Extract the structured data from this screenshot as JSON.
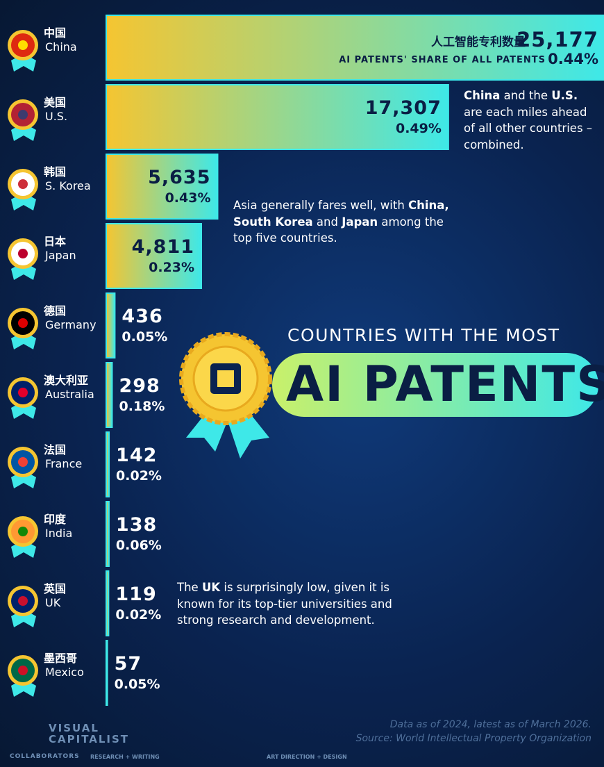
{
  "chart_data": {
    "type": "bar",
    "orientation": "horizontal",
    "title": "AI PATENTS",
    "title_prefix": "COUNTRIES WITH THE MOST",
    "categories": [
      "China",
      "U.S.",
      "S. Korea",
      "Japan",
      "Germany",
      "Australia",
      "France",
      "India",
      "UK",
      "Mexico"
    ],
    "categories_zh": [
      "中国",
      "美国",
      "韩国",
      "日本",
      "德国",
      "澳大利亚",
      "法国",
      "印度",
      "英国",
      "墨西哥"
    ],
    "values": [
      25177,
      17307,
      5635,
      4811,
      436,
      298,
      142,
      138,
      119,
      57
    ],
    "value_labels": [
      "25,177",
      "17,307",
      "5,635",
      "4,811",
      "436",
      "298",
      "142",
      "138",
      "119",
      "57"
    ],
    "value_header": "人工智能专利数量",
    "share_header": "AI PATENTS' SHARE OF ALL PATENTS",
    "shares": [
      0.44,
      0.49,
      0.43,
      0.23,
      0.05,
      0.18,
      0.02,
      0.06,
      0.02,
      0.05
    ],
    "share_labels": [
      "0.44%",
      "0.49%",
      "0.43%",
      "0.23%",
      "0.05%",
      "0.18%",
      "0.02%",
      "0.06%",
      "0.02%",
      "0.05%"
    ],
    "colors": [
      "#f5c531",
      "#3ee8e8"
    ],
    "annotations": [
      {
        "parts": [
          {
            "text": "China",
            "bold": true
          },
          {
            "text": " and the ",
            "bold": false
          },
          {
            "text": "U.S.",
            "bold": true
          },
          {
            "text": " are each miles ahead of all other countries – combined.",
            "bold": false
          }
        ]
      },
      {
        "parts": [
          {
            "text": "Asia generally fares well, with ",
            "bold": false
          },
          {
            "text": "China, South Korea",
            "bold": true
          },
          {
            "text": " and ",
            "bold": false
          },
          {
            "text": "Japan",
            "bold": true
          },
          {
            "text": " among the top five countries.",
            "bold": false
          }
        ]
      },
      {
        "parts": [
          {
            "text": "The ",
            "bold": false
          },
          {
            "text": "UK",
            "bold": true
          },
          {
            "text": " is surprisingly low, given it is known for its top-tier universities and strong research and development.",
            "bold": false
          }
        ]
      }
    ]
  },
  "footer": {
    "brand": "VISUAL CAPITALIST",
    "note": "Data as of 2024, latest as of March 2026.",
    "source": "Source: World Intellectual Property Organization",
    "collaborators": "COLLABORATORS",
    "roles": [
      "RESEARCH + WRITING",
      "ART DIRECTION + DESIGN"
    ]
  }
}
